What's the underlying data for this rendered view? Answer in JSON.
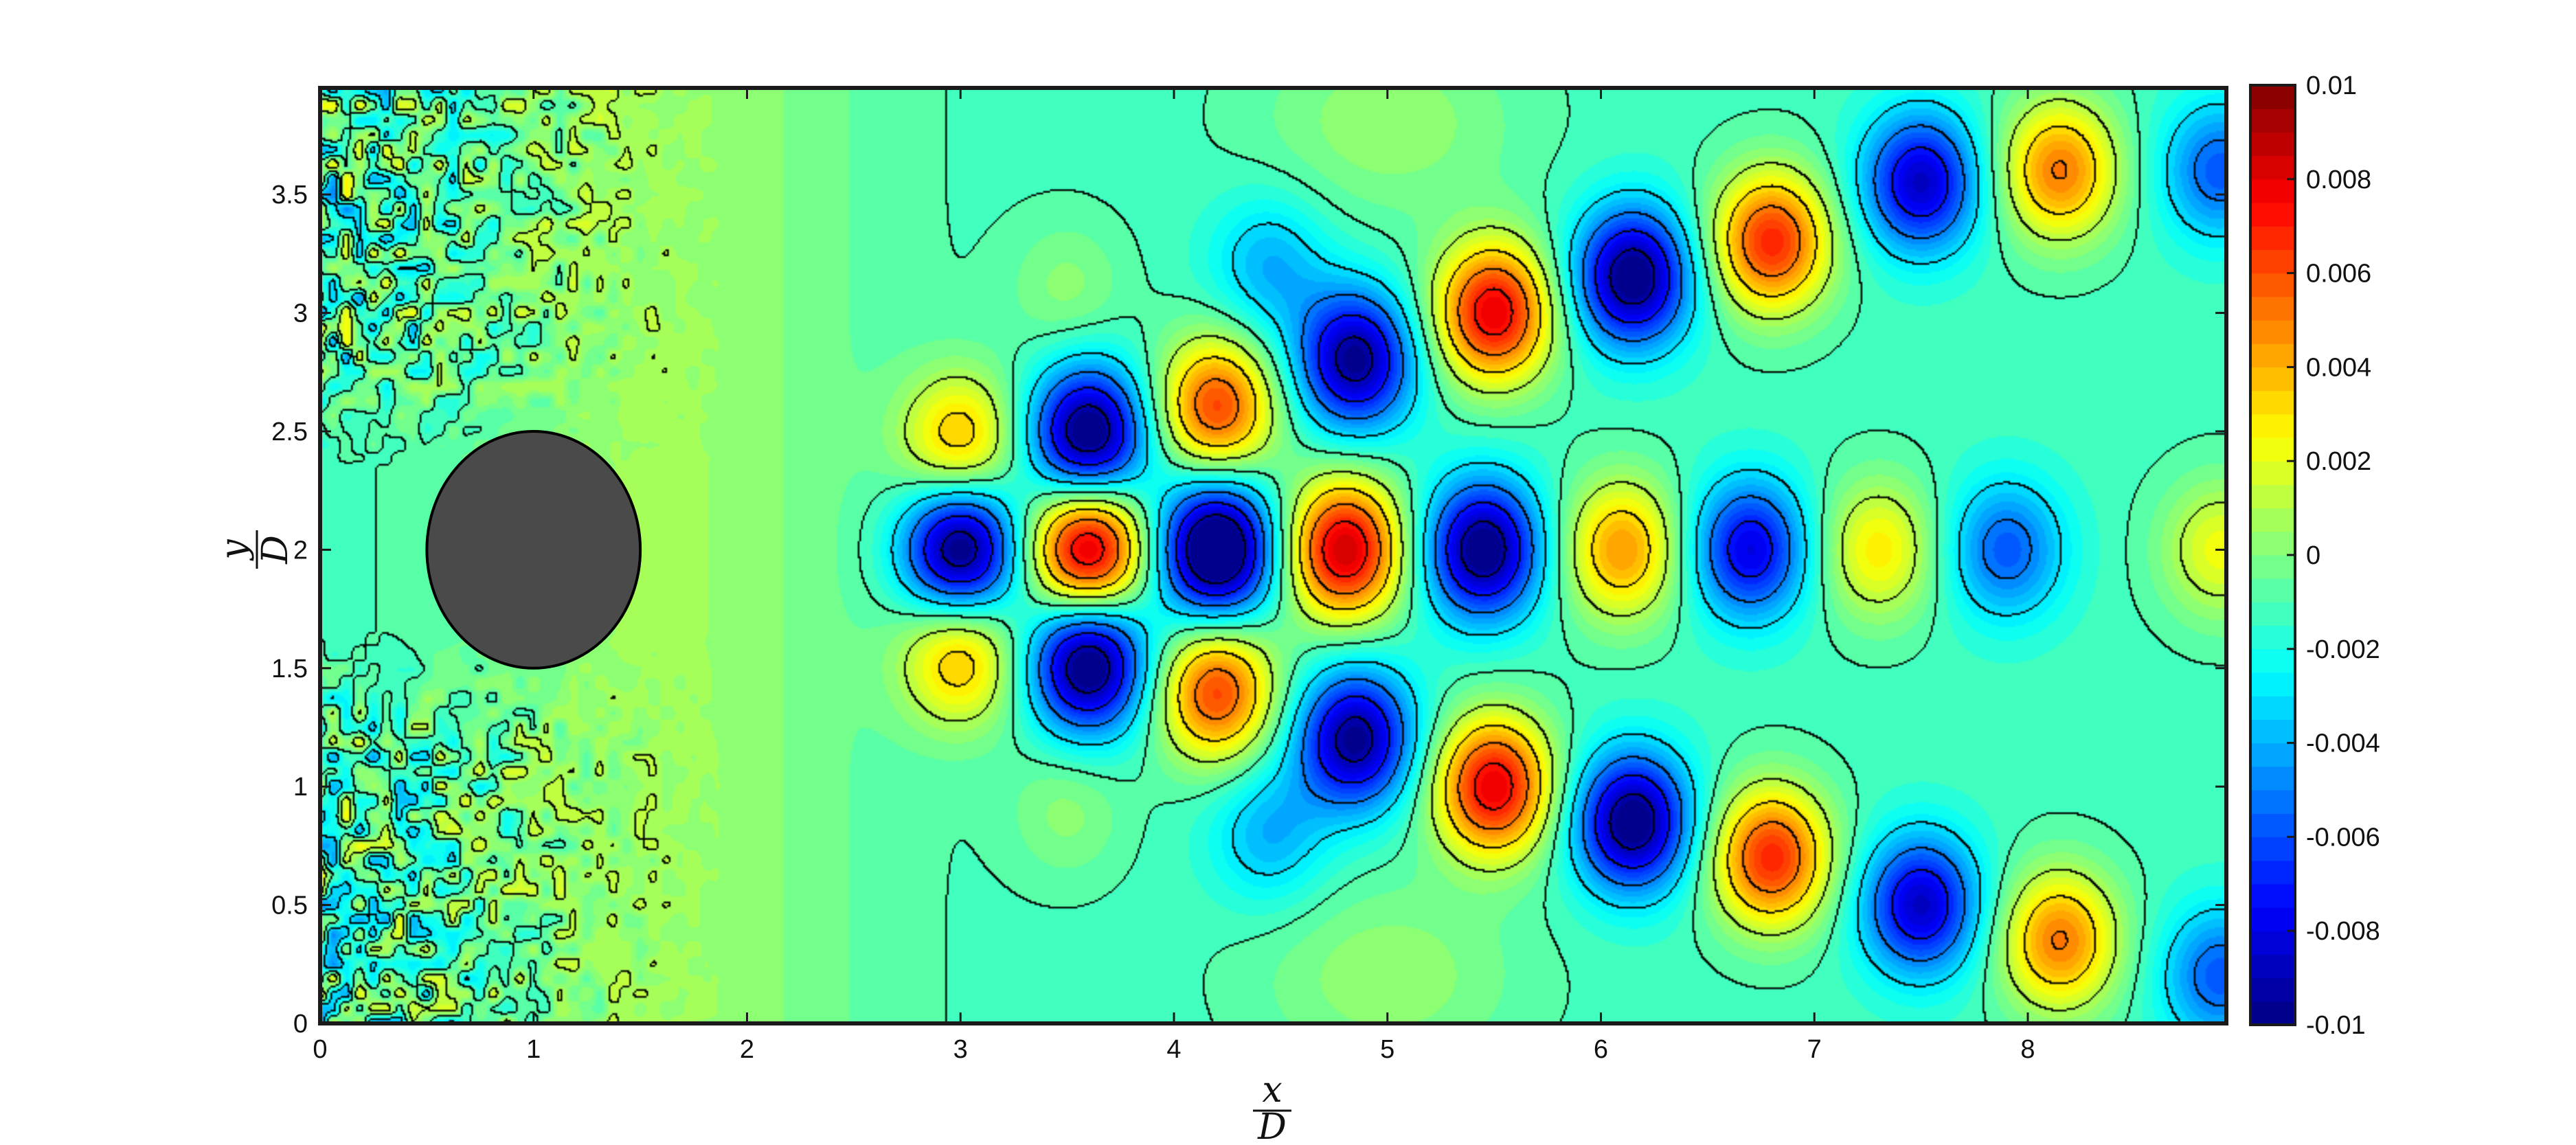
{
  "chart_data": {
    "type": "heatmap",
    "title": "",
    "xlabel": {
      "numerator": "x",
      "denominator": "D"
    },
    "ylabel": {
      "numerator": "y",
      "denominator": "D"
    },
    "xlim": [
      0,
      8.93
    ],
    "ylim": [
      0,
      3.95
    ],
    "x_ticks": [
      "0",
      "1",
      "2",
      "3",
      "4",
      "5",
      "6",
      "7",
      "8"
    ],
    "y_ticks": [
      "0",
      "0.5",
      "1",
      "1.5",
      "2",
      "2.5",
      "3",
      "3.5"
    ],
    "colorbar": {
      "range": [
        -0.01,
        0.01
      ],
      "tick_labels": [
        "0.01",
        "0.008",
        "0.006",
        "0.004",
        "0.002",
        "0",
        "-0.002",
        "-0.004",
        "-0.006",
        "-0.008",
        "-0.01"
      ],
      "colormap": "jet"
    },
    "contour_levels": [
      -0.009,
      -0.007,
      -0.005,
      -0.003,
      -0.001,
      0.001,
      0.003,
      0.005,
      0.007,
      0.009
    ],
    "cylinder": {
      "center_x": 1.0,
      "center_y": 2.0,
      "radius": 0.5,
      "color": "#4a4a4a"
    },
    "grid": false,
    "field_features": [
      {
        "x": 3.6,
        "y": 2.0,
        "value": 0.009
      },
      {
        "x": 4.2,
        "y": 2.0,
        "value": -0.0095
      },
      {
        "x": 3.0,
        "y": 2.0,
        "value": -0.0085
      },
      {
        "x": 3.6,
        "y": 2.48,
        "value": -0.0085
      },
      {
        "x": 3.6,
        "y": 1.52,
        "value": -0.0085
      },
      {
        "x": 3.0,
        "y": 2.45,
        "value": 0.0045
      },
      {
        "x": 3.0,
        "y": 1.55,
        "value": 0.0045
      },
      {
        "x": 4.8,
        "y": 2.0,
        "value": 0.0085
      },
      {
        "x": 4.2,
        "y": 2.6,
        "value": 0.0065
      },
      {
        "x": 4.2,
        "y": 1.4,
        "value": 0.0065
      },
      {
        "x": 4.85,
        "y": 2.8,
        "value": -0.0075
      },
      {
        "x": 4.85,
        "y": 1.2,
        "value": -0.0075
      },
      {
        "x": 5.45,
        "y": 2.0,
        "value": -0.008
      },
      {
        "x": 5.5,
        "y": 3.0,
        "value": 0.008
      },
      {
        "x": 5.5,
        "y": 1.0,
        "value": 0.008
      },
      {
        "x": 6.1,
        "y": 2.0,
        "value": 0.005
      },
      {
        "x": 6.15,
        "y": 3.15,
        "value": -0.008
      },
      {
        "x": 6.15,
        "y": 0.85,
        "value": -0.008
      },
      {
        "x": 6.7,
        "y": 2.0,
        "value": -0.006
      },
      {
        "x": 6.8,
        "y": 3.3,
        "value": 0.007
      },
      {
        "x": 6.8,
        "y": 0.7,
        "value": 0.007
      },
      {
        "x": 7.3,
        "y": 2.0,
        "value": 0.0035
      },
      {
        "x": 7.5,
        "y": 3.55,
        "value": -0.0065
      },
      {
        "x": 7.5,
        "y": 0.5,
        "value": -0.0065
      },
      {
        "x": 7.9,
        "y": 2.0,
        "value": -0.004
      },
      {
        "x": 8.15,
        "y": 3.6,
        "value": 0.0055
      },
      {
        "x": 8.15,
        "y": 0.35,
        "value": 0.0055
      },
      {
        "x": 8.9,
        "y": 2.0,
        "value": 0.003
      },
      {
        "x": 8.9,
        "y": 3.6,
        "value": -0.004
      },
      {
        "x": 8.9,
        "y": 0.2,
        "value": -0.004
      },
      {
        "x": 3.5,
        "y": 3.1,
        "value": 0.0012
      },
      {
        "x": 3.5,
        "y": 0.9,
        "value": 0.0012
      },
      {
        "x": 4.45,
        "y": 3.2,
        "value": -0.0025
      },
      {
        "x": 4.45,
        "y": 0.8,
        "value": -0.0025
      }
    ]
  }
}
